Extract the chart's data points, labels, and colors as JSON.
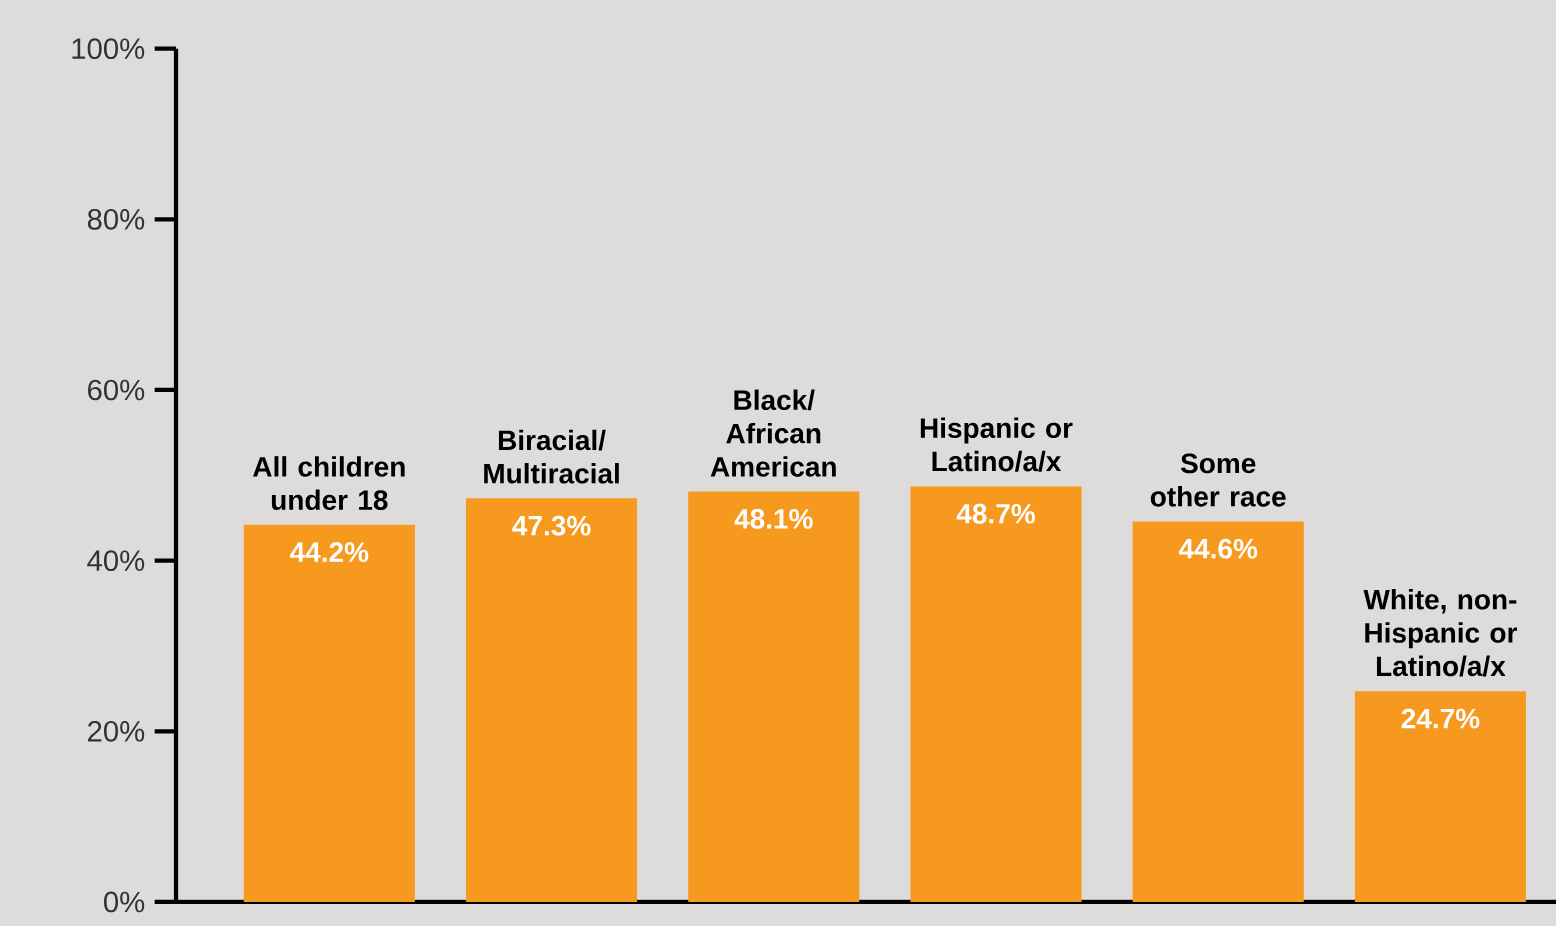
{
  "chart_data": {
    "type": "bar",
    "categories": [
      "All children under 18",
      "Biracial/ Multiracial",
      "Black/ African American",
      "Hispanic or Latino/a/x",
      "Some other race",
      "White, non-Hispanic or Latino/a/x"
    ],
    "values": [
      44.2,
      47.3,
      48.1,
      48.7,
      44.6,
      24.7
    ],
    "value_labels": [
      "44.2%",
      "47.3%",
      "48.1%",
      "48.7%",
      "44.6%",
      "24.7%"
    ],
    "color": "#f7981f",
    "ylim": [
      0,
      100
    ],
    "yticks": [
      {
        "value": 0,
        "label": "0%"
      },
      {
        "value": 20,
        "label": "20%"
      },
      {
        "value": 40,
        "label": "40%"
      },
      {
        "value": 60,
        "label": "60%"
      },
      {
        "value": 80,
        "label": "80%"
      },
      {
        "value": 100,
        "label": "100%"
      }
    ],
    "grid": false
  }
}
